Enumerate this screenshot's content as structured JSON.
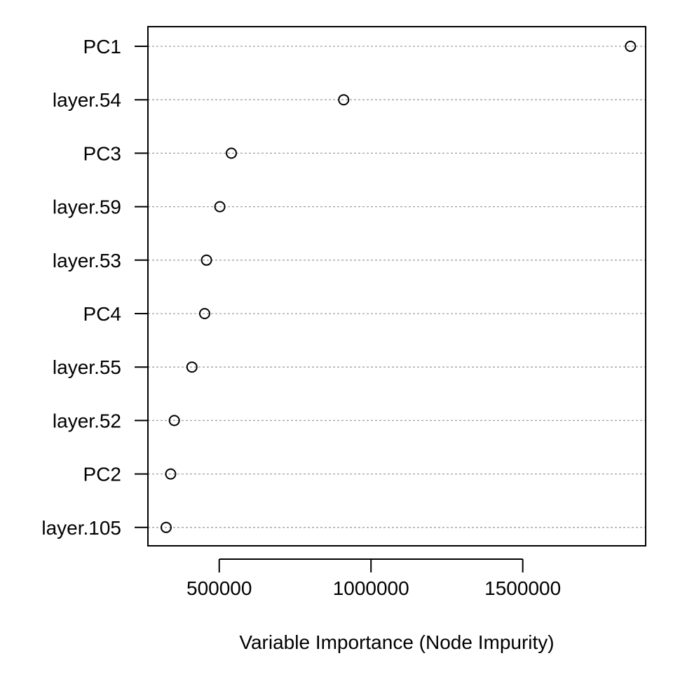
{
  "chart_data": {
    "type": "scatter",
    "title": "",
    "xlabel": "Variable Importance (Node Impurity)",
    "ylabel": "",
    "categories": [
      "PC1",
      "layer.54",
      "PC3",
      "layer.59",
      "layer.53",
      "PC4",
      "layer.55",
      "layer.52",
      "PC2",
      "layer.105"
    ],
    "values": [
      1855000,
      910000,
      540000,
      502000,
      458000,
      452000,
      410000,
      352000,
      340000,
      325000
    ],
    "xlim": [
      265000,
      1905000
    ],
    "x_ticks": [
      500000,
      1000000,
      1500000
    ],
    "x_tick_labels": [
      "500000",
      "1000000",
      "1500000"
    ],
    "grid": "dotted horizontal guide lines per category",
    "legend": "none",
    "colors": {
      "axis": "#000000",
      "guide": "#a0a0a0",
      "point": "#000000"
    }
  }
}
